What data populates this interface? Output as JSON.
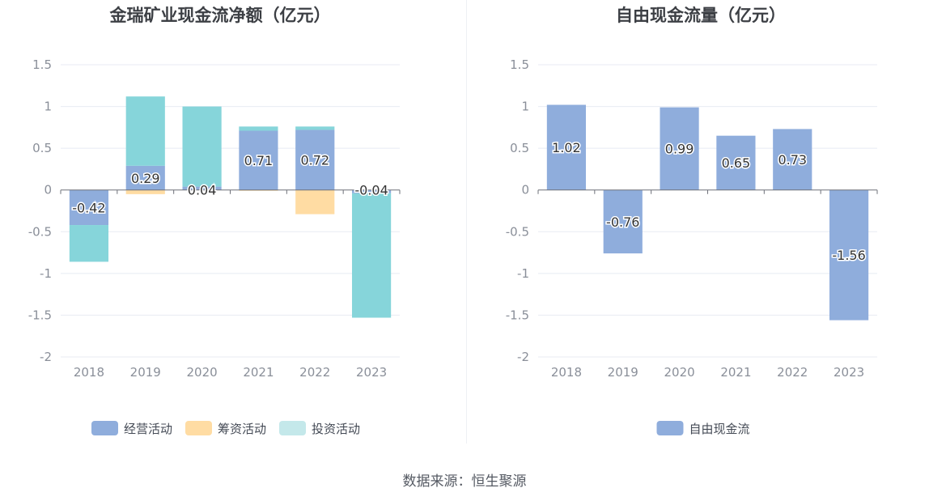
{
  "source": "数据来源：恒生聚源",
  "colors": {
    "operating": "#8faddc",
    "financing": "#ffdca3",
    "investing": "#86d5da",
    "investing_legend": "#c4e8ea",
    "free_cash": "#8faddc",
    "grid": "#e8ebf3",
    "axis_text": "#8a8f99",
    "title": "#3c3f44"
  },
  "chart_data": [
    {
      "type": "bar",
      "stacked": true,
      "title": "金瑞矿业现金流净额（亿元）",
      "categories": [
        "2018",
        "2019",
        "2020",
        "2021",
        "2022",
        "2023"
      ],
      "ylim": [
        -2,
        1.5
      ],
      "yticks": [
        "1.5",
        "1",
        "0.5",
        "0",
        "-0.5",
        "-1",
        "-1.5",
        "-2"
      ],
      "grid": true,
      "legend_position": "bottom",
      "series": [
        {
          "name": "经营活动",
          "key": "operating",
          "values": [
            -0.42,
            0.29,
            0.04,
            0.71,
            0.72,
            -0.04
          ],
          "labels": [
            "-0.42",
            "0.29",
            "0.04",
            "0.71",
            "0.72",
            "-0.04"
          ]
        },
        {
          "name": "筹资活动",
          "key": "financing",
          "values": [
            0.0,
            -0.05,
            0.0,
            -0.01,
            -0.29,
            0.0
          ]
        },
        {
          "name": "投资活动",
          "key": "investing",
          "values": [
            -0.44,
            0.83,
            0.96,
            0.05,
            0.04,
            -1.49
          ]
        }
      ]
    },
    {
      "type": "bar",
      "title": "自由现金流量（亿元）",
      "categories": [
        "2018",
        "2019",
        "2020",
        "2021",
        "2022",
        "2023"
      ],
      "ylim": [
        -2,
        1.5
      ],
      "yticks": [
        "1.5",
        "1",
        "0.5",
        "0",
        "-0.5",
        "-1",
        "-1.5",
        "-2"
      ],
      "grid": true,
      "legend_position": "bottom",
      "series": [
        {
          "name": "自由现金流",
          "key": "free_cash",
          "values": [
            1.02,
            -0.76,
            0.99,
            0.65,
            0.73,
            -1.56
          ],
          "labels": [
            "1.02",
            "-0.76",
            "0.99",
            "0.65",
            "0.73",
            "-1.56"
          ]
        }
      ]
    }
  ]
}
